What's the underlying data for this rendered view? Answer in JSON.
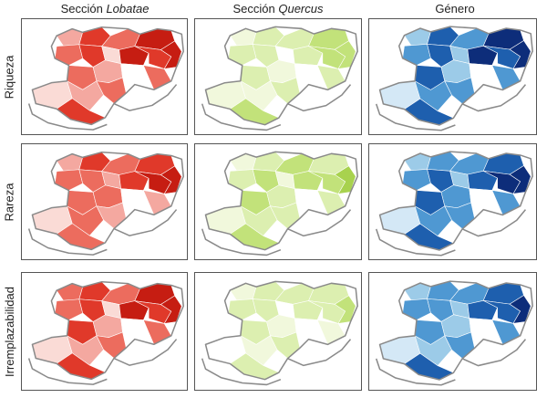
{
  "columns": [
    {
      "prefix": "Sección",
      "italic": "Lobatae"
    },
    {
      "prefix": "Sección",
      "italic": "Quercus"
    },
    {
      "prefix": "Género",
      "italic": ""
    }
  ],
  "rows": [
    "Riqueza",
    "Rareza",
    "Irremplazabilidad"
  ],
  "palettes": {
    "red": [
      "#ffffff",
      "#fadbd6",
      "#f4a8a0",
      "#ec6c5e",
      "#e0392a",
      "#c61d12"
    ],
    "green": [
      "#ffffff",
      "#f1f8dc",
      "#dcefb0",
      "#c2e27a",
      "#a8d24e",
      "#8fbf2e"
    ],
    "blue": [
      "#ffffff",
      "#d4e8f6",
      "#9ccbe8",
      "#4f98d2",
      "#1e5fae",
      "#0d2d7a"
    ]
  },
  "panel_levels": [
    [
      [
        2,
        4,
        3,
        5,
        3,
        4,
        1,
        5,
        4,
        5,
        3,
        2,
        0,
        3,
        1,
        2,
        4,
        3
      ],
      [
        2,
        4,
        3,
        4,
        3,
        3,
        2,
        4,
        5,
        5,
        3,
        3,
        0,
        2,
        1,
        3,
        3,
        2
      ],
      [
        3,
        4,
        3,
        5,
        3,
        4,
        1,
        5,
        4,
        5,
        4,
        2,
        0,
        3,
        1,
        2,
        4,
        3
      ]
    ],
    [
      [
        1,
        2,
        2,
        3,
        2,
        2,
        0,
        2,
        3,
        3,
        2,
        1,
        0,
        2,
        1,
        1,
        3,
        2
      ],
      [
        1,
        2,
        3,
        2,
        2,
        3,
        1,
        3,
        3,
        4,
        3,
        2,
        0,
        2,
        1,
        2,
        3,
        2
      ],
      [
        1,
        2,
        2,
        2,
        2,
        2,
        0,
        2,
        2,
        3,
        2,
        1,
        0,
        1,
        0,
        1,
        2,
        2
      ]
    ],
    [
      [
        2,
        4,
        3,
        5,
        3,
        4,
        2,
        5,
        4,
        5,
        4,
        2,
        0,
        3,
        1,
        3,
        4,
        3
      ],
      [
        2,
        3,
        3,
        4,
        3,
        4,
        2,
        4,
        5,
        5,
        4,
        3,
        0,
        3,
        1,
        3,
        4,
        3
      ],
      [
        2,
        3,
        3,
        4,
        3,
        3,
        2,
        4,
        4,
        5,
        3,
        2,
        0,
        3,
        1,
        2,
        4,
        3
      ]
    ]
  ]
}
